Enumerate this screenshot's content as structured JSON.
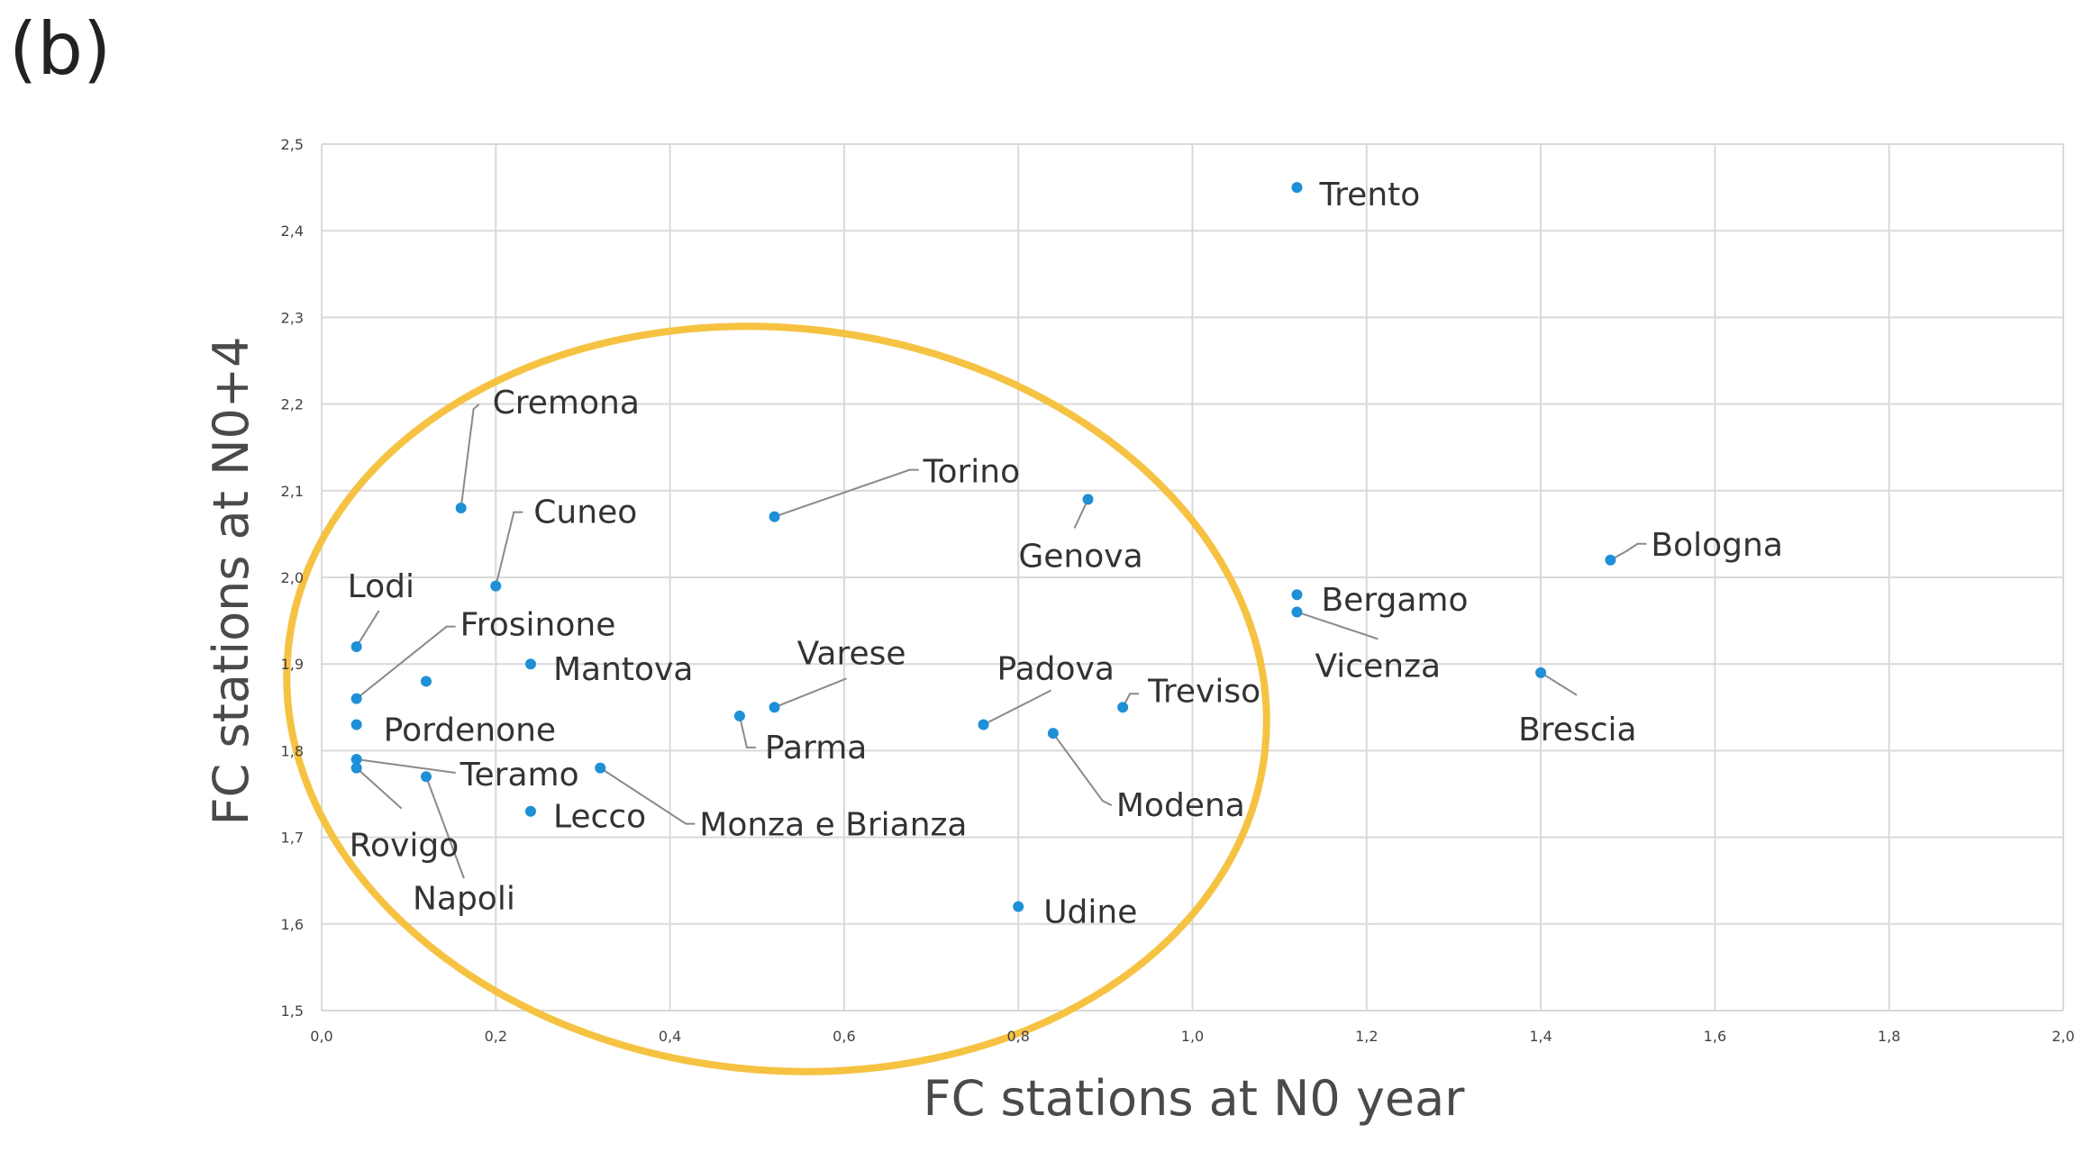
{
  "panel_label": "(b)",
  "colors": {
    "point": "#1f8fd6",
    "grid": "#d9d9d9",
    "ellipse": "#f6c242",
    "leader": "#8a8a8a"
  },
  "chart_data": {
    "type": "scatter",
    "xlabel": "FC stations at N0 year",
    "ylabel": "FC stations at N0+4",
    "xlim": [
      0.0,
      2.0
    ],
    "ylim": [
      1.5,
      2.5
    ],
    "xticks": [
      "0,0",
      "0,2",
      "0,4",
      "0,6",
      "0,8",
      "1,0",
      "1,2",
      "1,4",
      "1,6",
      "1,8",
      "2,0"
    ],
    "yticks": [
      "1,5",
      "1,6",
      "1,7",
      "1,8",
      "1,9",
      "2,0",
      "2,1",
      "2,2",
      "2,3",
      "2,4",
      "2,5"
    ],
    "grid": true,
    "legend": "none",
    "annotation": "yellow ellipse enclosing the cluster of cities at lower left",
    "points": [
      {
        "name": "Trento",
        "x": 1.12,
        "y": 2.45
      },
      {
        "name": "Cremona",
        "x": 0.16,
        "y": 2.08
      },
      {
        "name": "Torino",
        "x": 0.52,
        "y": 2.07
      },
      {
        "name": "Genova",
        "x": 0.88,
        "y": 2.09
      },
      {
        "name": "Bologna",
        "x": 1.48,
        "y": 2.02
      },
      {
        "name": "Cuneo",
        "x": 0.2,
        "y": 1.99
      },
      {
        "name": "Bergamo",
        "x": 1.12,
        "y": 1.98
      },
      {
        "name": "Vicenza",
        "x": 1.12,
        "y": 1.96
      },
      {
        "name": "Lodi",
        "x": 0.04,
        "y": 1.92
      },
      {
        "name": "Frosinone",
        "x": 0.04,
        "y": 1.86
      },
      {
        "name": "Mantova",
        "x": 0.24,
        "y": 1.9
      },
      {
        "name": "Brescia",
        "x": 1.4,
        "y": 1.89
      },
      {
        "name": "Varese",
        "x": 0.52,
        "y": 1.85
      },
      {
        "name": "Treviso",
        "x": 0.92,
        "y": 1.85
      },
      {
        "name": "Parma",
        "x": 0.48,
        "y": 1.84
      },
      {
        "name": "Padova",
        "x": 0.76,
        "y": 1.83
      },
      {
        "name": "Pordenone",
        "x": 0.04,
        "y": 1.83
      },
      {
        "name": "Modena",
        "x": 0.84,
        "y": 1.82
      },
      {
        "name": "Teramo",
        "x": 0.04,
        "y": 1.79
      },
      {
        "name": "Rovigo",
        "x": 0.04,
        "y": 1.78
      },
      {
        "name": "Napoli",
        "x": 0.12,
        "y": 1.77
      },
      {
        "name": "Monza e Brianza",
        "x": 0.32,
        "y": 1.78
      },
      {
        "name": "Lecco",
        "x": 0.24,
        "y": 1.73
      },
      {
        "name": "Udine",
        "x": 0.8,
        "y": 1.62
      },
      {
        "name": "",
        "x": 0.12,
        "y": 1.88
      }
    ]
  }
}
